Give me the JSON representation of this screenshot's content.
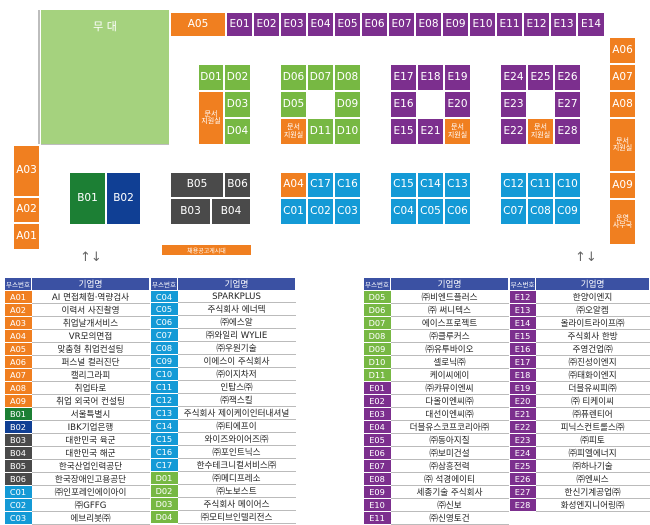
{
  "stage": "무 대",
  "ad_banner": "채용공고게시대",
  "info_booth": "문서\n지원실",
  "operations_room": "운영\n사무국",
  "colors": {
    "A": "#f07f20",
    "B_dark": "#4a4a4a",
    "B_green": "#1c7f34",
    "B_navy": "#103f94",
    "C": "#149ad6",
    "D": "#77b843",
    "E": "#7c2f8e",
    "header": "#3b51a3"
  },
  "booths": {
    "A01": "A01",
    "A02": "A02",
    "A03": "A03",
    "A04": "A04",
    "A05": "A05",
    "A06": "A06",
    "A07": "A07",
    "A08": "A08",
    "A09": "A09",
    "B01": "B01",
    "B02": "B02",
    "B03": "B03",
    "B04": "B04",
    "B05": "B05",
    "B06": "B06",
    "C01": "C01",
    "C02": "C02",
    "C03": "C03",
    "C04": "C04",
    "C05": "C05",
    "C06": "C06",
    "C07": "C07",
    "C08": "C08",
    "C09": "C09",
    "C10": "C10",
    "C11": "C11",
    "C12": "C12",
    "C13": "C13",
    "C14": "C14",
    "C15": "C15",
    "C16": "C16",
    "C17": "C17",
    "D01": "D01",
    "D02": "D02",
    "D03": "D03",
    "D04": "D04",
    "D05": "D05",
    "D06": "D06",
    "D07": "D07",
    "D08": "D08",
    "D09": "D09",
    "D10": "D10",
    "D11": "D11",
    "E01": "E01",
    "E02": "E02",
    "E03": "E03",
    "E04": "E04",
    "E05": "E05",
    "E06": "E06",
    "E07": "E07",
    "E08": "E08",
    "E09": "E09",
    "E10": "E10",
    "E11": "E11",
    "E12": "E12",
    "E13": "E13",
    "E14": "E14",
    "E15": "E15",
    "E16": "E16",
    "E17": "E17",
    "E18": "E18",
    "E19": "E19",
    "E20": "E20",
    "E21": "E21",
    "E22": "E22",
    "E23": "E23",
    "E24": "E24",
    "E25": "E25",
    "E26": "E26",
    "E27": "E27",
    "E28": "E28"
  },
  "table_headers": {
    "booth": "부스번호",
    "company": "기업명"
  },
  "tables": [
    [
      {
        "no": "A01",
        "name": "AI 면접체험·역량검사",
        "cat": "A"
      },
      {
        "no": "A02",
        "name": "이력서 사진촬영",
        "cat": "A"
      },
      {
        "no": "A03",
        "name": "취업날개서비스",
        "cat": "A"
      },
      {
        "no": "A04",
        "name": "VR모의면접",
        "cat": "A"
      },
      {
        "no": "A05",
        "name": "맞춤형 취업컨설팅",
        "cat": "A"
      },
      {
        "no": "A06",
        "name": "퍼스널 컬러진단",
        "cat": "A"
      },
      {
        "no": "A07",
        "name": "캘리그라피",
        "cat": "A"
      },
      {
        "no": "A08",
        "name": "취업타로",
        "cat": "A"
      },
      {
        "no": "A09",
        "name": "취업 외국어 컨설팅",
        "cat": "A"
      },
      {
        "no": "B01",
        "name": "서울특별시",
        "cat": "Bg"
      },
      {
        "no": "B02",
        "name": "IBK기업은행",
        "cat": "Bn"
      },
      {
        "no": "B03",
        "name": "대한민국 육군",
        "cat": "Bd"
      },
      {
        "no": "B04",
        "name": "대한민국 해군",
        "cat": "Bd"
      },
      {
        "no": "B05",
        "name": "한국산업인력공단",
        "cat": "Bd"
      },
      {
        "no": "B06",
        "name": "한국장애인고용공단",
        "cat": "Bd"
      },
      {
        "no": "C01",
        "name": "㈜인포레인에이아이",
        "cat": "C"
      },
      {
        "no": "C02",
        "name": "㈜GFFG",
        "cat": "C"
      },
      {
        "no": "C03",
        "name": "에브리봇㈜",
        "cat": "C"
      }
    ],
    [
      {
        "no": "C04",
        "name": "SPARKPLUS",
        "cat": "C"
      },
      {
        "no": "C05",
        "name": "주식회사 에너텍",
        "cat": "C"
      },
      {
        "no": "C06",
        "name": "㈜에스알",
        "cat": "C"
      },
      {
        "no": "C07",
        "name": "㈜와일리 WYLIE",
        "cat": "C"
      },
      {
        "no": "C08",
        "name": "㈜우원기술",
        "cat": "C"
      },
      {
        "no": "C09",
        "name": "이에스이 주식회사",
        "cat": "C"
      },
      {
        "no": "C10",
        "name": "㈜이지차저",
        "cat": "C"
      },
      {
        "no": "C11",
        "name": "인탑스㈜",
        "cat": "C"
      },
      {
        "no": "C12",
        "name": "㈜잭스킬",
        "cat": "C"
      },
      {
        "no": "C13",
        "name": "주식회사 제이케이인터내셔널",
        "cat": "C"
      },
      {
        "no": "C14",
        "name": "㈜티에프이",
        "cat": "C"
      },
      {
        "no": "C15",
        "name": "와이즈와이어즈㈜",
        "cat": "C"
      },
      {
        "no": "C16",
        "name": "㈜포인트닉스",
        "cat": "C"
      },
      {
        "no": "C17",
        "name": "한수테크니컬서비스㈜",
        "cat": "C"
      },
      {
        "no": "D01",
        "name": "㈜메디프레소",
        "cat": "D"
      },
      {
        "no": "D02",
        "name": "㈜노보스트",
        "cat": "D"
      },
      {
        "no": "D03",
        "name": "주식회사 메이어스",
        "cat": "D"
      },
      {
        "no": "D04",
        "name": "㈜모티브인텔리전스",
        "cat": "D"
      }
    ],
    [
      {
        "no": "D05",
        "name": "㈜비엔드플러스",
        "cat": "D"
      },
      {
        "no": "D06",
        "name": "㈜ 써니텍스",
        "cat": "D"
      },
      {
        "no": "D07",
        "name": "에이스프로젝트",
        "cat": "D"
      },
      {
        "no": "D08",
        "name": "㈜클루커스",
        "cat": "D"
      },
      {
        "no": "D09",
        "name": "㈜유투바이오",
        "cat": "D"
      },
      {
        "no": "D10",
        "name": "셀로닉㈜",
        "cat": "D"
      },
      {
        "no": "D11",
        "name": "케이씨에이",
        "cat": "D"
      },
      {
        "no": "E01",
        "name": "㈜캬뮤이엔씨",
        "cat": "E"
      },
      {
        "no": "E02",
        "name": "다올이엔씨㈜",
        "cat": "E"
      },
      {
        "no": "E03",
        "name": "대선이엔씨㈜",
        "cat": "E"
      },
      {
        "no": "E04",
        "name": "더블유스코프코리아㈜",
        "cat": "E"
      },
      {
        "no": "E05",
        "name": "㈜동아지질",
        "cat": "E"
      },
      {
        "no": "E06",
        "name": "㈜보미건설",
        "cat": "E"
      },
      {
        "no": "E07",
        "name": "㈜삼흥전력",
        "cat": "E"
      },
      {
        "no": "E08",
        "name": "㈜ 석경에이티",
        "cat": "E"
      },
      {
        "no": "E09",
        "name": "세종기술 주식회사",
        "cat": "E"
      },
      {
        "no": "E10",
        "name": "㈜신보",
        "cat": "E"
      },
      {
        "no": "E11",
        "name": "㈜신영토건",
        "cat": "E"
      }
    ],
    [
      {
        "no": "E12",
        "name": "한양이엔지",
        "cat": "E"
      },
      {
        "no": "E13",
        "name": "㈜오알켐",
        "cat": "E"
      },
      {
        "no": "E14",
        "name": "올라이트라이프㈜",
        "cat": "E"
      },
      {
        "no": "E15",
        "name": "주식회사 한방",
        "cat": "E"
      },
      {
        "no": "E16",
        "name": "주영건업㈜",
        "cat": "E"
      },
      {
        "no": "E17",
        "name": "㈜진성이엔지",
        "cat": "E"
      },
      {
        "no": "E18",
        "name": "㈜태화이엔지",
        "cat": "E"
      },
      {
        "no": "E19",
        "name": "더블유씨피㈜",
        "cat": "E"
      },
      {
        "no": "E20",
        "name": "㈜ 티케이씨",
        "cat": "E"
      },
      {
        "no": "E21",
        "name": "㈜퓨렌티어",
        "cat": "E"
      },
      {
        "no": "E22",
        "name": "피닉스컨트롤스㈜",
        "cat": "E"
      },
      {
        "no": "E23",
        "name": "㈜피토",
        "cat": "E"
      },
      {
        "no": "E24",
        "name": "㈜피엘에너지",
        "cat": "E"
      },
      {
        "no": "E25",
        "name": "㈜하나기술",
        "cat": "E"
      },
      {
        "no": "E26",
        "name": "㈜엔씨스",
        "cat": "E"
      },
      {
        "no": "E27",
        "name": "한신기계공업㈜",
        "cat": "E"
      },
      {
        "no": "E28",
        "name": "화성엔지니어링㈜",
        "cat": "E"
      }
    ]
  ]
}
